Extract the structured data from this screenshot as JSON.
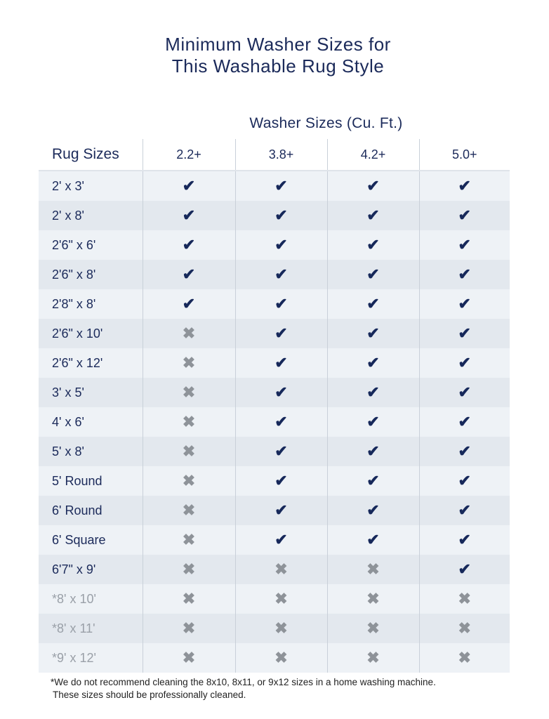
{
  "title_line1": "Minimum Washer Sizes for",
  "title_line2": "This Washable Rug Style",
  "footnote_line1": "*We do not recommend cleaning the 8x10, 8x11, or 9x12 sizes in a home washing machine.",
  "footnote_line2": "These sizes should be professionally cleaned.",
  "colors": {
    "text": "#1b2a5a",
    "check": "#16285a",
    "cross": "#8e9399",
    "row_light": "#eef2f6",
    "row_dark": "#e3e8ee"
  },
  "chart_data": {
    "type": "table",
    "column_group_header": "Washer Sizes (Cu. Ft.)",
    "row_header": "Rug Sizes",
    "columns": [
      "2.2+",
      "3.8+",
      "4.2+",
      "5.0+"
    ],
    "rows": [
      {
        "label": "2' x 3'",
        "values": [
          true,
          true,
          true,
          true
        ]
      },
      {
        "label": "2' x 8'",
        "values": [
          true,
          true,
          true,
          true
        ]
      },
      {
        "label": "2'6\" x 6'",
        "values": [
          true,
          true,
          true,
          true
        ]
      },
      {
        "label": "2'6\" x 8'",
        "values": [
          true,
          true,
          true,
          true
        ]
      },
      {
        "label": "2'8\" x 8'",
        "values": [
          true,
          true,
          true,
          true
        ]
      },
      {
        "label": "2'6\" x 10'",
        "values": [
          false,
          true,
          true,
          true
        ]
      },
      {
        "label": "2'6\" x 12'",
        "values": [
          false,
          true,
          true,
          true
        ]
      },
      {
        "label": "3' x 5'",
        "values": [
          false,
          true,
          true,
          true
        ]
      },
      {
        "label": "4' x 6'",
        "values": [
          false,
          true,
          true,
          true
        ]
      },
      {
        "label": "5' x 8'",
        "values": [
          false,
          true,
          true,
          true
        ]
      },
      {
        "label": "5' Round",
        "values": [
          false,
          true,
          true,
          true
        ]
      },
      {
        "label": "6' Round",
        "values": [
          false,
          true,
          true,
          true
        ]
      },
      {
        "label": "6' Square",
        "values": [
          false,
          true,
          true,
          true
        ]
      },
      {
        "label": "6'7\" x 9'",
        "values": [
          false,
          false,
          false,
          true
        ]
      },
      {
        "label": "*8' x 10'",
        "values": [
          false,
          false,
          false,
          false
        ],
        "muted": true
      },
      {
        "label": "*8' x 11'",
        "values": [
          false,
          false,
          false,
          false
        ],
        "muted": true
      },
      {
        "label": "*9' x 12'",
        "values": [
          false,
          false,
          false,
          false
        ],
        "muted": true
      }
    ],
    "symbols": {
      "true": "✔",
      "false": "✖"
    }
  }
}
